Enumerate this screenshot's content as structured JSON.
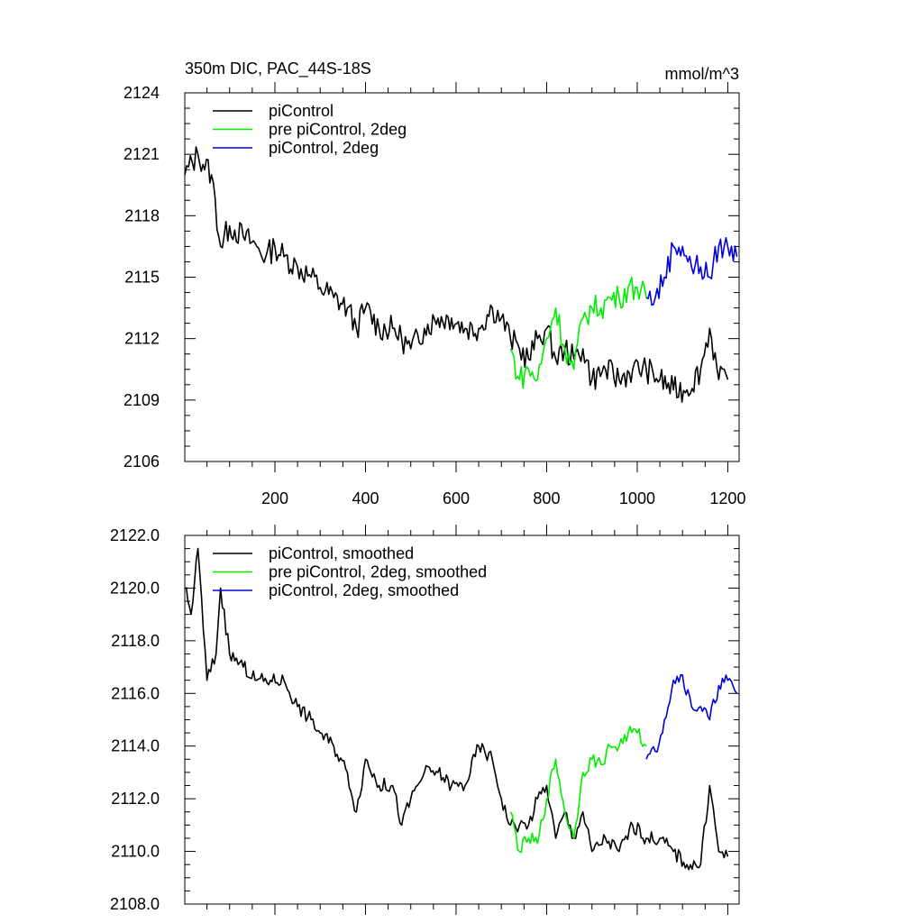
{
  "chart_data": [
    {
      "type": "line",
      "title": "350m DIC, PAC_44S-18S",
      "units_label": "mmol/m^3",
      "xlabel": "",
      "ylabel": "",
      "xlim": [
        1,
        1225
      ],
      "ylim": [
        2106,
        2124
      ],
      "x_ticks": [
        200,
        400,
        600,
        800,
        1000,
        1200
      ],
      "x_tick_labels": [
        "200",
        "400",
        "600",
        "800",
        "1000",
        "1200"
      ],
      "y_ticks": [
        2106,
        2109,
        2112,
        2115,
        2118,
        2121,
        2124
      ],
      "y_tick_labels": [
        "2106",
        "2109",
        "2112",
        "2115",
        "2118",
        "2121",
        "2124"
      ],
      "legend_position": "top-left",
      "grid": false,
      "series": [
        {
          "name": "piControl",
          "color": "#000000",
          "x": [
            1,
            30,
            60,
            80,
            100,
            130,
            160,
            180,
            200,
            220,
            250,
            280,
            300,
            330,
            360,
            380,
            400,
            430,
            460,
            480,
            500,
            530,
            560,
            590,
            620,
            650,
            680,
            700,
            720,
            740,
            760,
            780,
            800,
            820,
            840,
            860,
            880,
            900,
            930,
            960,
            990,
            1020,
            1050,
            1080,
            1110,
            1140,
            1160,
            1180,
            1200
          ],
          "values": [
            2120,
            2121,
            2120,
            2116.5,
            2117.5,
            2117,
            2116.5,
            2116,
            2116.5,
            2116,
            2115.5,
            2115,
            2114.5,
            2114,
            2113.5,
            2112.5,
            2113.5,
            2112.5,
            2112.5,
            2112,
            2111.5,
            2112.5,
            2113,
            2113,
            2112.5,
            2112.5,
            2113.5,
            2113,
            2112,
            2111.5,
            2111,
            2112,
            2112.5,
            2111,
            2111.5,
            2111,
            2111.5,
            2110,
            2110.5,
            2110,
            2110.5,
            2110.5,
            2110,
            2109.5,
            2109.5,
            2110.5,
            2112.5,
            2110,
            2110
          ]
        },
        {
          "name": "pre piControl, 2deg",
          "color": "#00ee00",
          "x": [
            720,
            740,
            760,
            780,
            800,
            820,
            840,
            860,
            880,
            900,
            920,
            940,
            960,
            980,
            1000,
            1020
          ],
          "values": [
            2111.5,
            2110,
            2110.5,
            2110,
            2112,
            2113.5,
            2111.5,
            2110.5,
            2113,
            2113.5,
            2113.5,
            2114,
            2114,
            2114.5,
            2114.5,
            2114
          ]
        },
        {
          "name": "piControl, 2deg",
          "color": "#0000dd",
          "x": [
            1020,
            1040,
            1060,
            1080,
            1100,
            1120,
            1140,
            1160,
            1180,
            1200,
            1220
          ],
          "values": [
            2114,
            2114,
            2115,
            2116.5,
            2116.5,
            2115.5,
            2115.5,
            2115,
            2116.5,
            2116.5,
            2116
          ]
        }
      ]
    },
    {
      "type": "line",
      "title": "",
      "xlabel": "",
      "ylabel": "",
      "xlim": [
        1,
        1225
      ],
      "ylim": [
        2108,
        2122
      ],
      "x_ticks": [
        200,
        400,
        600,
        800,
        1000,
        1200
      ],
      "y_ticks": [
        2108,
        2110,
        2112,
        2114,
        2116,
        2118,
        2120,
        2122
      ],
      "y_tick_labels": [
        "2108.0",
        "2110.0",
        "2112.0",
        "2114.0",
        "2116.0",
        "2118.0",
        "2120.0",
        "2122.0"
      ],
      "legend_position": "top-left",
      "grid": false,
      "series": [
        {
          "name": "piControl, smoothed",
          "color": "#000000",
          "x": [
            1,
            15,
            30,
            50,
            70,
            80,
            100,
            130,
            160,
            190,
            220,
            250,
            280,
            300,
            330,
            360,
            380,
            400,
            430,
            460,
            480,
            500,
            530,
            560,
            590,
            620,
            650,
            680,
            700,
            720,
            740,
            760,
            780,
            800,
            820,
            840,
            860,
            880,
            900,
            930,
            960,
            990,
            1020,
            1050,
            1080,
            1110,
            1140,
            1160,
            1180,
            1200
          ],
          "values": [
            2120,
            2119,
            2121.5,
            2116.5,
            2117.5,
            2120,
            2117.5,
            2117,
            2116.5,
            2116.5,
            2116.5,
            2115.5,
            2115,
            2114.5,
            2114,
            2113,
            2111.5,
            2113.5,
            2112.5,
            2112.5,
            2111,
            2112,
            2113,
            2113,
            2112.5,
            2112.5,
            2114,
            2113.5,
            2112,
            2111,
            2111,
            2111,
            2112,
            2112.5,
            2110.5,
            2111.5,
            2110.5,
            2111.5,
            2110,
            2110.5,
            2110,
            2111,
            2110.5,
            2110.5,
            2110,
            2109.5,
            2109.5,
            2112.5,
            2110,
            2109.8
          ]
        },
        {
          "name": "pre piControl, 2deg, smoothed",
          "color": "#00ee00",
          "x": [
            720,
            740,
            760,
            780,
            800,
            820,
            840,
            860,
            880,
            900,
            920,
            940,
            960,
            980,
            1000,
            1020
          ],
          "values": [
            2111.5,
            2110,
            2110.5,
            2110.3,
            2112,
            2113.5,
            2111.5,
            2110.5,
            2113,
            2113.5,
            2113.3,
            2114,
            2114,
            2114.5,
            2114.5,
            2114
          ]
        },
        {
          "name": "piControl, 2deg, smoothed",
          "color": "#0000dd",
          "x": [
            1020,
            1040,
            1060,
            1080,
            1100,
            1120,
            1140,
            1160,
            1180,
            1200,
            1220
          ],
          "values": [
            2113.5,
            2113.8,
            2115,
            2116.5,
            2116.7,
            2115.5,
            2115.5,
            2115,
            2116.3,
            2116.5,
            2116
          ]
        }
      ]
    }
  ]
}
